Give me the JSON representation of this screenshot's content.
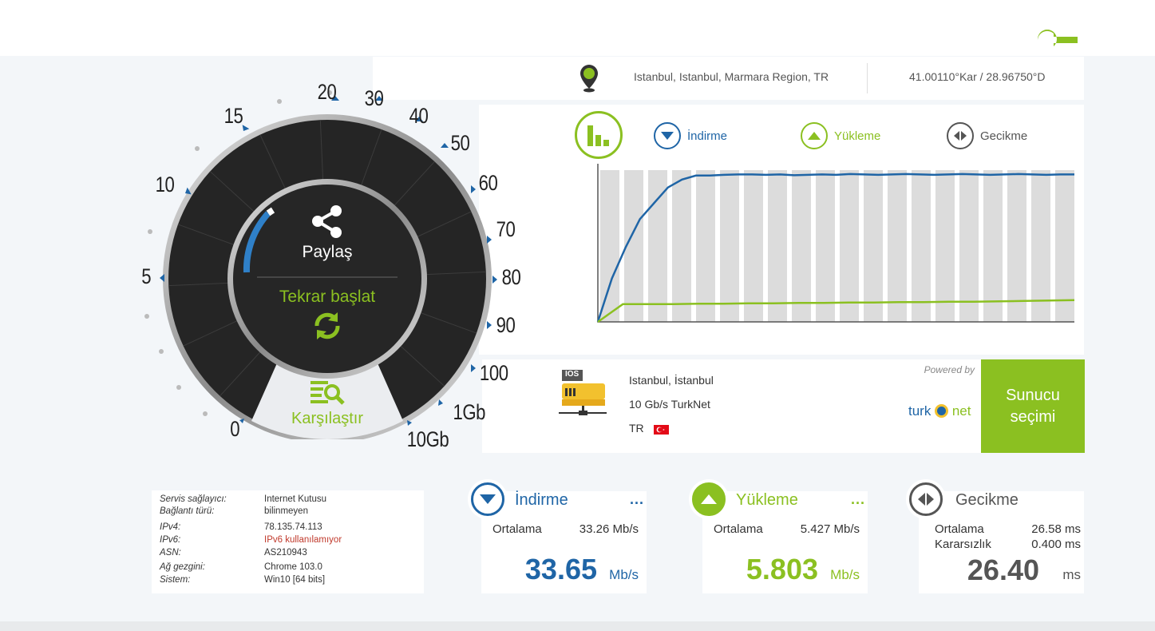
{
  "location": {
    "place": "Istanbul, Istanbul, Marmara Region, TR",
    "coords": "41.00110°Kar / 28.96750°D"
  },
  "legend": {
    "download": "İndirme",
    "upload": "Yükleme",
    "latency": "Gecikme"
  },
  "chart_data": {
    "type": "line",
    "series": [
      {
        "name": "İndirme",
        "color": "#1f65a6",
        "values": [
          0,
          11,
          19,
          26,
          30,
          34,
          36,
          37,
          37,
          37.2,
          37.3,
          37.3,
          37.2,
          37.3,
          37.1,
          37.2,
          37.3,
          37.2,
          37.4,
          37.3,
          37.2,
          37.3,
          37.4,
          37.3,
          37.2,
          37.3,
          37.4,
          37.3,
          37.2,
          37.3,
          37.4,
          37.3,
          37.2,
          37.3,
          37.3
        ]
      },
      {
        "name": "Yükleme",
        "color": "#8bc021",
        "values": [
          0,
          4.5,
          4.5,
          4.5,
          4.6,
          4.6,
          4.7,
          4.7,
          4.8,
          4.8,
          4.9,
          4.9,
          5.0,
          5.0,
          5.1,
          5.1,
          5.2,
          5.3,
          5.4,
          5.5
        ]
      }
    ],
    "bars": 20,
    "ylim": [
      0,
      40
    ]
  },
  "server": {
    "city": "Istanbul, İstanbul",
    "provider": "10 Gb/s TurkNet",
    "country": "TR",
    "icon_label": "IOS",
    "powered_by": "Powered by",
    "brand_left": "turk",
    "brand_right": "net",
    "select_button": "Sunucu seçimi"
  },
  "gauge": {
    "share": "Paylaş",
    "restart": "Tekrar başlat",
    "compare": "Karşılaştır",
    "labels": [
      "0",
      "5",
      "10",
      "15",
      "20",
      "30",
      "40",
      "50",
      "60",
      "70",
      "80",
      "90",
      "100",
      "1Gb",
      "10Gb"
    ]
  },
  "info": {
    "rows": [
      {
        "key": "Servis sağlayıcı:",
        "value": "Internet Kutusu"
      },
      {
        "key": "Bağlantı türü:",
        "value": "bilinmeyen"
      },
      {
        "key": "IPv4:",
        "value": "78.135.74.113"
      },
      {
        "key": "IPv6:",
        "value": "IPv6 kullanılamıyor"
      },
      {
        "key": "ASN:",
        "value": "AS210943"
      },
      {
        "key": "Ağ gezgini:",
        "value": "Chrome 103.0"
      },
      {
        "key": "Sistem:",
        "value": "Win10 [64 bits]"
      }
    ]
  },
  "stats": {
    "download": {
      "title": "İndirme",
      "avg_label": "Ortalama",
      "avg": "33.26 Mb/s",
      "value": "33.65",
      "unit": "Mb/s",
      "more": "..."
    },
    "upload": {
      "title": "Yükleme",
      "avg_label": "Ortalama",
      "avg": "5.427 Mb/s",
      "value": "5.803",
      "unit": "Mb/s",
      "more": "..."
    },
    "latency": {
      "title": "Gecikme",
      "avg_label": "Ortalama",
      "avg": "26.58 ms",
      "jitter_label": "Kararsızlık",
      "jitter": "0.400 ms",
      "value": "26.40",
      "unit": "ms"
    }
  },
  "colors": {
    "green": "#8bc021",
    "blue": "#1f65a6",
    "dark": "#555555",
    "error": "#c0392b"
  }
}
